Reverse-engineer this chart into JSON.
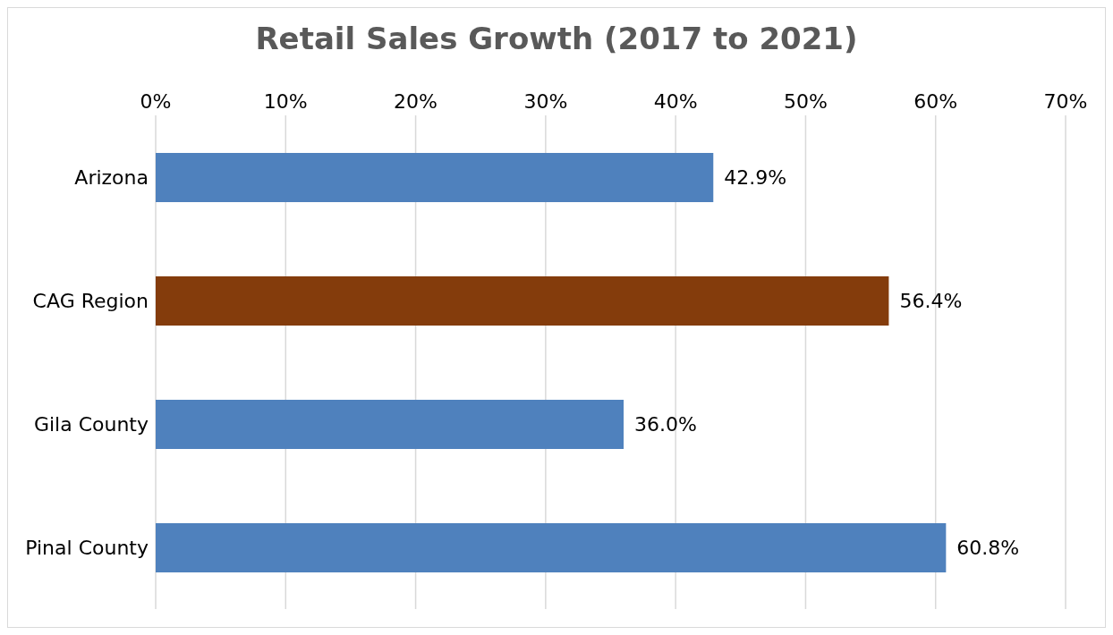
{
  "chart_data": {
    "type": "bar",
    "orientation": "horizontal",
    "title": "Retail Sales Growth (2017 to 2021)",
    "categories": [
      "Arizona",
      "CAG Region",
      "Gila County",
      "Pinal County"
    ],
    "values": [
      42.9,
      56.4,
      36.0,
      60.8
    ],
    "colors": [
      "#4f81bd",
      "#843c0c",
      "#4f81bd",
      "#4f81bd"
    ],
    "value_labels": [
      "42.9%",
      "56.4%",
      "36.0%",
      "60.8%"
    ],
    "xlim": [
      0,
      70
    ],
    "xticks": [
      {
        "value": 0,
        "label": "0%"
      },
      {
        "value": 10,
        "label": "10%"
      },
      {
        "value": 20,
        "label": "20%"
      },
      {
        "value": 30,
        "label": "30%"
      },
      {
        "value": 40,
        "label": "40%"
      },
      {
        "value": 50,
        "label": "50%"
      },
      {
        "value": 60,
        "label": "60%"
      },
      {
        "value": 70,
        "label": "70%"
      }
    ],
    "grid": "x",
    "legend": false
  }
}
